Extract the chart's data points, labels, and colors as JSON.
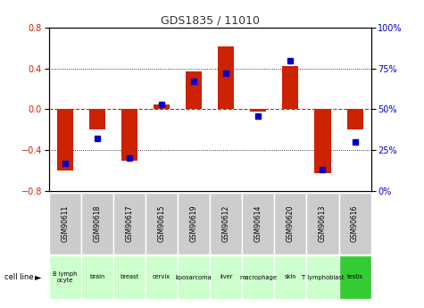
{
  "title": "GDS1835 / 11010",
  "samples": [
    "GSM90611",
    "GSM90618",
    "GSM90617",
    "GSM90615",
    "GSM90619",
    "GSM90612",
    "GSM90614",
    "GSM90620",
    "GSM90613",
    "GSM90616"
  ],
  "cell_lines": [
    "B lymph\nocyte",
    "brain",
    "breast",
    "cervix",
    "liposarcoma\n",
    "liver",
    "macrophage\n",
    "skin",
    "T lymphoblast\n",
    "testis"
  ],
  "cell_line_colors": [
    "#ccffcc",
    "#ccffcc",
    "#ccffcc",
    "#ccffcc",
    "#ccffcc",
    "#ccffcc",
    "#ccffcc",
    "#ccffcc",
    "#ccffcc",
    "#33cc33"
  ],
  "gsm_color": "#cccccc",
  "log2_ratio": [
    -0.6,
    -0.2,
    -0.5,
    0.05,
    0.37,
    0.62,
    -0.02,
    0.42,
    -0.63,
    -0.2
  ],
  "percentile_rank": [
    17,
    32,
    20,
    53,
    67,
    72,
    46,
    80,
    13,
    30
  ],
  "ylim_left": [
    -0.8,
    0.8
  ],
  "ylim_right": [
    0,
    100
  ],
  "yticks_left": [
    -0.8,
    -0.4,
    0.0,
    0.4,
    0.8
  ],
  "yticks_right": [
    0,
    25,
    50,
    75,
    100
  ],
  "bar_color": "#cc2200",
  "dot_color": "#0000cc",
  "background_color": "#ffffff",
  "title_color": "#333333",
  "cell_line_label_texts": [
    "B lymph\nocyte",
    "brain",
    "breast",
    "cervix",
    "liposarcoma",
    "liver",
    "macrophage",
    "skin",
    "T lymphoblast",
    "testis"
  ]
}
